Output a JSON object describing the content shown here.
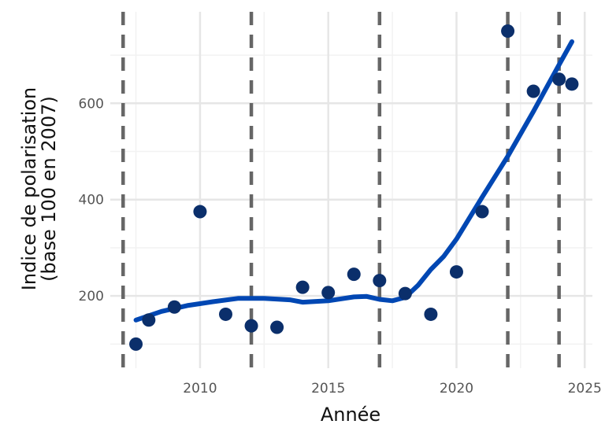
{
  "chart_data": {
    "type": "scatter",
    "xlabel": "Année",
    "ylabel_line1": "Indice de polarisation",
    "ylabel_line2": "(base 100 en 2007)",
    "xlim": [
      2006.5,
      2025.3
    ],
    "ylim": [
      50,
      790
    ],
    "x_ticks": [
      2010,
      2015,
      2020,
      2025
    ],
    "y_ticks": [
      200,
      400,
      600
    ],
    "grid": true,
    "points": [
      {
        "x": 2007.5,
        "y": 100
      },
      {
        "x": 2008,
        "y": 150
      },
      {
        "x": 2009,
        "y": 177
      },
      {
        "x": 2010,
        "y": 375
      },
      {
        "x": 2011,
        "y": 162
      },
      {
        "x": 2012,
        "y": 138
      },
      {
        "x": 2013,
        "y": 135
      },
      {
        "x": 2014,
        "y": 218
      },
      {
        "x": 2015,
        "y": 207
      },
      {
        "x": 2016,
        "y": 245
      },
      {
        "x": 2017,
        "y": 232
      },
      {
        "x": 2018,
        "y": 205
      },
      {
        "x": 2019,
        "y": 162
      },
      {
        "x": 2020,
        "y": 250
      },
      {
        "x": 2021,
        "y": 375
      },
      {
        "x": 2022,
        "y": 750
      },
      {
        "x": 2023,
        "y": 625
      },
      {
        "x": 2024,
        "y": 650
      },
      {
        "x": 2024.5,
        "y": 640
      }
    ],
    "smooth_line": [
      {
        "x": 2007.5,
        "y": 150
      },
      {
        "x": 2008.5,
        "y": 168
      },
      {
        "x": 2009.5,
        "y": 180
      },
      {
        "x": 2010.5,
        "y": 188
      },
      {
        "x": 2011.5,
        "y": 195
      },
      {
        "x": 2012.5,
        "y": 195
      },
      {
        "x": 2013.5,
        "y": 192
      },
      {
        "x": 2014,
        "y": 187
      },
      {
        "x": 2015,
        "y": 190
      },
      {
        "x": 2016,
        "y": 198
      },
      {
        "x": 2016.5,
        "y": 199
      },
      {
        "x": 2017,
        "y": 193
      },
      {
        "x": 2017.5,
        "y": 190
      },
      {
        "x": 2018,
        "y": 197
      },
      {
        "x": 2018.5,
        "y": 222
      },
      {
        "x": 2019,
        "y": 255
      },
      {
        "x": 2019.5,
        "y": 282
      },
      {
        "x": 2020,
        "y": 318
      },
      {
        "x": 2021,
        "y": 405
      },
      {
        "x": 2022,
        "y": 490
      },
      {
        "x": 2023,
        "y": 583
      },
      {
        "x": 2024,
        "y": 680
      },
      {
        "x": 2024.5,
        "y": 728
      }
    ],
    "vlines": [
      2007,
      2012,
      2017,
      2022,
      2024
    ],
    "colors": {
      "points": "#0b2f6b",
      "line": "#0047b3",
      "vlines": "#666666",
      "grid_major": "#e6e6e6",
      "grid_minor": "#f2f2f2"
    }
  }
}
